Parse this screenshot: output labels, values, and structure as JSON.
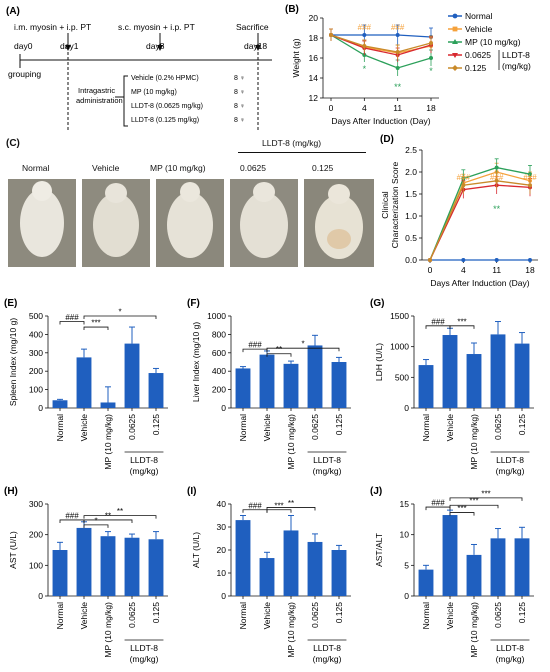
{
  "panels": {
    "A": {
      "letter": "(A)",
      "steps": [
        {
          "label": "i.m. myosin + i.p. PT",
          "day": "day1"
        },
        {
          "label": "s.c. myosin + i.p. PT",
          "day": "day8"
        },
        {
          "label": "Sacrifice",
          "day": "day18"
        }
      ],
      "start_day": "day0",
      "grouping": "grouping",
      "admin_label_1": "Intragastric",
      "admin_label_2": "administration",
      "groups": [
        {
          "name": "Vehicle (0.2% HPMC)",
          "n": "8 ♀"
        },
        {
          "name": "MP (10 mg/kg)",
          "n": "8 ♀"
        },
        {
          "name": "LLDT-8 (0.0625 mg/kg)",
          "n": "8 ♀"
        },
        {
          "name": "LLDT-8 (0.125 mg/kg)",
          "n": "8 ♀"
        }
      ]
    },
    "C": {
      "letter": "(C)",
      "labels": [
        "Normal",
        "Vehicle",
        "MP (10 mg/kg)",
        "0.0625",
        "0.125"
      ],
      "group_header": "LLDT-8 (mg/kg)"
    },
    "legend": {
      "items": [
        "Normal",
        "Vehicle",
        "MP (10 mg/kg)",
        "0.0625",
        "0.125"
      ],
      "bracket_label_1": "LLDT-8",
      "bracket_label_2": "(mg/kg)",
      "colors": [
        "#1f5fbf",
        "#f5a13a",
        "#2ca05a",
        "#d8282f",
        "#c98a2a"
      ]
    }
  },
  "chart_data": [
    {
      "id": "B",
      "letter": "(B)",
      "type": "line",
      "xlabel": "Days After Induction (Day)",
      "ylabel": "Weight (g)",
      "categories": [
        "0",
        "4",
        "11",
        "18"
      ],
      "ylim": [
        12,
        20
      ],
      "yticks": [
        12,
        14,
        16,
        18,
        20
      ],
      "series": [
        {
          "name": "Normal",
          "values": [
            18.3,
            18.3,
            18.3,
            18.1
          ],
          "err": [
            0.6,
            1.0,
            1.0,
            0.9
          ]
        },
        {
          "name": "Vehicle",
          "values": [
            18.3,
            17.1,
            16.5,
            17.2
          ],
          "err": [
            0.6,
            0.7,
            0.8,
            0.8
          ]
        },
        {
          "name": "MP (10 mg/kg)",
          "values": [
            18.3,
            16.3,
            15.0,
            16.0
          ],
          "err": [
            0.6,
            0.7,
            0.8,
            0.8
          ]
        },
        {
          "name": "0.0625",
          "values": [
            18.3,
            17.0,
            16.3,
            17.3
          ],
          "err": [
            0.6,
            0.7,
            0.7,
            0.8
          ]
        },
        {
          "name": "0.125",
          "values": [
            18.3,
            17.2,
            16.6,
            17.5
          ],
          "err": [
            0.6,
            0.6,
            0.7,
            0.7
          ]
        }
      ],
      "annotations": [
        {
          "text": "###",
          "x": "4"
        },
        {
          "text": "###",
          "x": "11"
        },
        {
          "text": "*",
          "x": "4"
        },
        {
          "text": "**",
          "x": "11"
        },
        {
          "text": "*",
          "x": "18"
        }
      ]
    },
    {
      "id": "D",
      "letter": "(D)",
      "type": "line",
      "xlabel": "Days After Induction (Day)",
      "ylabel_1": "Clinical",
      "ylabel_2": "Characterization Score",
      "categories": [
        "0",
        "4",
        "11",
        "18"
      ],
      "ylim": [
        0,
        2.5
      ],
      "yticks": [
        0.0,
        0.5,
        1.0,
        1.5,
        2.0,
        2.5
      ],
      "series": [
        {
          "name": "Normal",
          "values": [
            0,
            0,
            0,
            0
          ],
          "err": [
            0,
            0,
            0,
            0
          ]
        },
        {
          "name": "Vehicle",
          "values": [
            0,
            1.75,
            2.0,
            1.8
          ],
          "err": [
            0,
            0.2,
            0.2,
            0.2
          ]
        },
        {
          "name": "MP (10 mg/kg)",
          "values": [
            0,
            1.85,
            2.1,
            1.95
          ],
          "err": [
            0,
            0.2,
            0.2,
            0.2
          ]
        },
        {
          "name": "0.0625",
          "values": [
            0,
            1.6,
            1.7,
            1.65
          ],
          "err": [
            0,
            0.2,
            0.2,
            0.2
          ]
        },
        {
          "name": "0.125",
          "values": [
            0,
            1.7,
            1.8,
            1.7
          ],
          "err": [
            0,
            0.2,
            0.2,
            0.2
          ]
        }
      ],
      "annotations": [
        {
          "text": "###",
          "x": "4"
        },
        {
          "text": "###",
          "x": "11"
        },
        {
          "text": "###",
          "x": "18"
        },
        {
          "text": "**",
          "x": "11"
        }
      ]
    },
    {
      "id": "E",
      "letter": "(E)",
      "type": "bar",
      "ylabel": "Spleen Index (mg/10 g)",
      "categories": [
        "Normal",
        "Vehicle",
        "MP (10 mg/kg)",
        "0.0625",
        "0.125"
      ],
      "values": [
        42,
        275,
        30,
        350,
        190
      ],
      "err": [
        5,
        45,
        85,
        90,
        25
      ],
      "ylim": [
        0,
        500
      ],
      "yticks": [
        0,
        100,
        200,
        300,
        400,
        500
      ],
      "brackets": [
        {
          "from": 0,
          "to": 1,
          "text": "###"
        },
        {
          "from": 1,
          "to": 2,
          "text": "***"
        },
        {
          "from": 1,
          "to": 4,
          "text": "*"
        }
      ],
      "bracket_y": [
        470,
        440,
        500
      ]
    },
    {
      "id": "F",
      "letter": "(F)",
      "type": "bar",
      "ylabel": "Liver Index (mg/10 g)",
      "categories": [
        "Normal",
        "Vehicle",
        "MP (10 mg/kg)",
        "0.0625",
        "0.125"
      ],
      "values": [
        430,
        580,
        480,
        680,
        500
      ],
      "err": [
        20,
        40,
        30,
        110,
        50
      ],
      "ylim": [
        0,
        1000
      ],
      "yticks": [
        0,
        200,
        400,
        600,
        800,
        1000
      ],
      "brackets": [
        {
          "from": 0,
          "to": 1,
          "text": "###"
        },
        {
          "from": 1,
          "to": 2,
          "text": "**"
        },
        {
          "from": 1,
          "to": 4,
          "text": "*"
        }
      ],
      "bracket_y": [
        640,
        590,
        650
      ]
    },
    {
      "id": "G",
      "letter": "(G)",
      "type": "bar",
      "ylabel": "LDH (U/L)",
      "categories": [
        "Normal",
        "Vehicle",
        "MP (10 mg/kg)",
        "0.0625",
        "0.125"
      ],
      "values": [
        700,
        1190,
        880,
        1200,
        1050
      ],
      "err": [
        90,
        110,
        180,
        210,
        180
      ],
      "ylim": [
        0,
        1500
      ],
      "yticks": [
        0,
        500,
        1000,
        1500
      ],
      "brackets": [
        {
          "from": 0,
          "to": 1,
          "text": "###"
        },
        {
          "from": 1,
          "to": 2,
          "text": "***"
        }
      ],
      "bracket_y": [
        1340,
        1340
      ]
    },
    {
      "id": "H",
      "letter": "(H)",
      "type": "bar",
      "ylabel": "AST (U/L)",
      "categories": [
        "Normal",
        "Vehicle",
        "MP (10 mg/kg)",
        "0.0625",
        "0.125"
      ],
      "values": [
        150,
        222,
        195,
        190,
        185
      ],
      "err": [
        25,
        20,
        15,
        12,
        25
      ],
      "ylim": [
        0,
        300
      ],
      "yticks": [
        0,
        100,
        200,
        300
      ],
      "brackets": [
        {
          "from": 0,
          "to": 1,
          "text": "###"
        },
        {
          "from": 1,
          "to": 2,
          "text": "*"
        },
        {
          "from": 1,
          "to": 3,
          "text": "**"
        },
        {
          "from": 1,
          "to": 4,
          "text": "**"
        }
      ],
      "bracket_y": [
        248,
        232,
        248,
        262
      ]
    },
    {
      "id": "I",
      "letter": "(I)",
      "type": "bar",
      "ylabel": "ALT (U/L)",
      "categories": [
        "Normal",
        "Vehicle",
        "MP (10 mg/kg)",
        "0.0625",
        "0.125"
      ],
      "values": [
        33,
        16.5,
        28.5,
        23.5,
        20
      ],
      "err": [
        2,
        2.5,
        6.5,
        3.5,
        2
      ],
      "ylim": [
        0,
        40
      ],
      "yticks": [
        0,
        10,
        20,
        30,
        40
      ],
      "brackets": [
        {
          "from": 0,
          "to": 1,
          "text": "###"
        },
        {
          "from": 1,
          "to": 2,
          "text": "***"
        },
        {
          "from": 1,
          "to": 3,
          "text": "**"
        }
      ],
      "bracket_y": [
        37.5,
        37.5,
        38.5
      ]
    },
    {
      "id": "J",
      "letter": "(J)",
      "type": "bar",
      "ylabel": "AST/ALT",
      "categories": [
        "Normal",
        "Vehicle",
        "MP (10 mg/kg)",
        "0.0625",
        "0.125"
      ],
      "values": [
        4.3,
        13.2,
        6.7,
        9.4,
        9.4
      ],
      "err": [
        0.7,
        0.8,
        1.7,
        1.6,
        1.8
      ],
      "ylim": [
        0,
        15
      ],
      "yticks": [
        0,
        5,
        10,
        15
      ],
      "brackets": [
        {
          "from": 0,
          "to": 1,
          "text": "###"
        },
        {
          "from": 1,
          "to": 2,
          "text": "***"
        },
        {
          "from": 1,
          "to": 3,
          "text": "***"
        },
        {
          "from": 1,
          "to": 4,
          "text": "***"
        }
      ],
      "bracket_y": [
        14.5,
        13.6,
        14.8,
        16.0
      ]
    }
  ],
  "bar_xlabel_group": {
    "line1": "LLDT-8",
    "line2": "(mg/kg)"
  }
}
